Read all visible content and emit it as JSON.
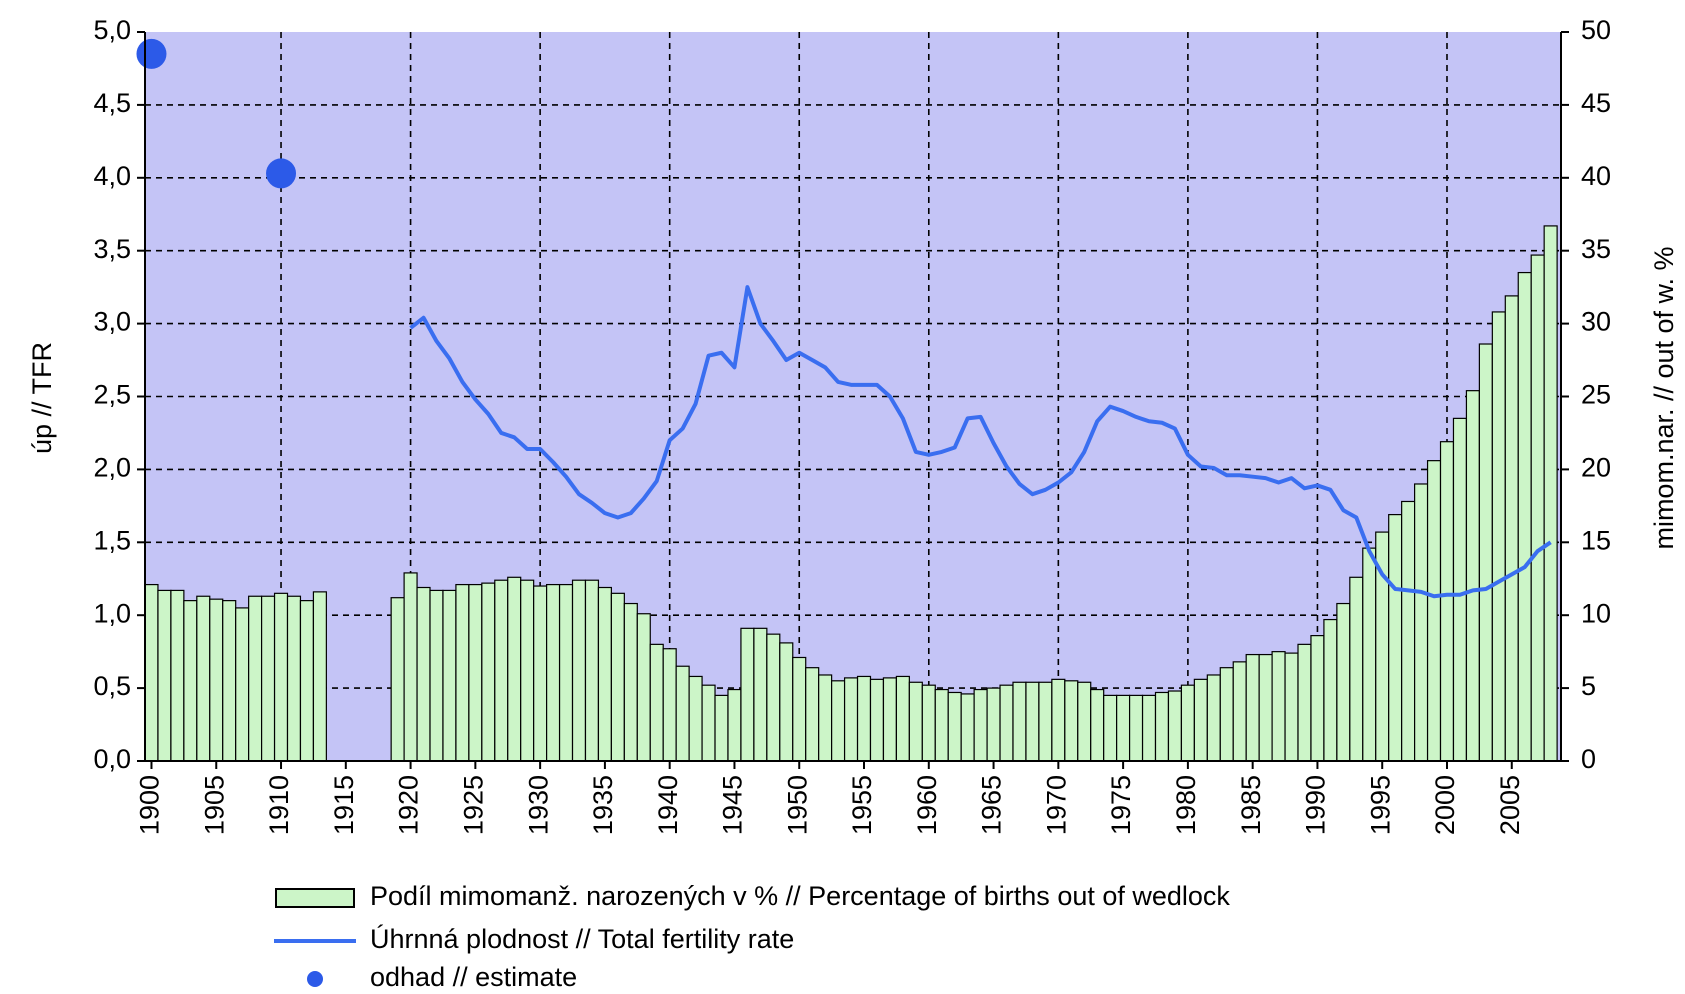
{
  "chart_data": {
    "type": "combo",
    "x": [
      1900,
      1901,
      1902,
      1903,
      1904,
      1905,
      1906,
      1907,
      1908,
      1909,
      1910,
      1911,
      1912,
      1913,
      1914,
      1915,
      1916,
      1917,
      1918,
      1919,
      1920,
      1921,
      1922,
      1923,
      1924,
      1925,
      1926,
      1927,
      1928,
      1929,
      1930,
      1931,
      1932,
      1933,
      1934,
      1935,
      1936,
      1937,
      1938,
      1939,
      1940,
      1941,
      1942,
      1943,
      1944,
      1945,
      1946,
      1947,
      1948,
      1949,
      1950,
      1951,
      1952,
      1953,
      1954,
      1955,
      1956,
      1957,
      1958,
      1959,
      1960,
      1961,
      1962,
      1963,
      1964,
      1965,
      1966,
      1967,
      1968,
      1969,
      1970,
      1971,
      1972,
      1973,
      1974,
      1975,
      1976,
      1977,
      1978,
      1979,
      1980,
      1981,
      1982,
      1983,
      1984,
      1985,
      1986,
      1987,
      1988,
      1989,
      1990,
      1991,
      1992,
      1993,
      1994,
      1995,
      1996,
      1997,
      1998,
      1999,
      2000,
      2001,
      2002,
      2003,
      2004,
      2005,
      2006,
      2007,
      2008
    ],
    "series": [
      {
        "name": "Podíl mimomanž. narozených v % // Percentage of births out of wedlock",
        "type": "bar",
        "axis": "y2",
        "color": "#ccf5c8",
        "values": [
          12.1,
          11.7,
          11.7,
          11.0,
          11.3,
          11.1,
          11.0,
          10.5,
          11.3,
          11.3,
          11.5,
          11.3,
          11.0,
          11.6,
          null,
          null,
          null,
          null,
          null,
          11.2,
          12.9,
          11.9,
          11.7,
          11.7,
          12.1,
          12.1,
          12.2,
          12.4,
          12.6,
          12.4,
          12.0,
          12.1,
          12.1,
          12.4,
          12.4,
          11.9,
          11.5,
          10.8,
          10.1,
          8.0,
          7.7,
          6.5,
          5.8,
          5.2,
          4.5,
          4.9,
          9.1,
          9.1,
          8.7,
          8.1,
          7.1,
          6.4,
          5.9,
          5.5,
          5.7,
          5.8,
          5.6,
          5.7,
          5.8,
          5.4,
          5.2,
          4.9,
          4.7,
          4.6,
          4.9,
          5.0,
          5.2,
          5.4,
          5.4,
          5.4,
          5.6,
          5.5,
          5.4,
          4.9,
          4.5,
          4.5,
          4.5,
          4.5,
          4.7,
          4.8,
          5.2,
          5.6,
          5.9,
          6.4,
          6.8,
          7.3,
          7.3,
          7.5,
          7.4,
          8.0,
          8.6,
          9.7,
          10.8,
          12.6,
          14.6,
          15.7,
          16.9,
          17.8,
          19.0,
          20.6,
          21.9,
          23.5,
          25.4,
          28.6,
          30.8,
          31.9,
          33.5,
          34.7,
          36.7
        ]
      },
      {
        "name": "Úhrnná plodnost // Total fertility rate",
        "type": "line",
        "color": "#3a6ef0",
        "values": [
          null,
          null,
          null,
          null,
          null,
          null,
          null,
          null,
          null,
          null,
          null,
          null,
          null,
          null,
          null,
          null,
          null,
          null,
          null,
          null,
          2.97,
          3.04,
          2.88,
          2.76,
          2.6,
          2.48,
          2.38,
          2.25,
          2.22,
          2.14,
          2.14,
          2.05,
          1.95,
          1.83,
          1.77,
          1.7,
          1.67,
          1.7,
          1.8,
          1.92,
          2.2,
          2.28,
          2.45,
          2.78,
          2.8,
          2.7,
          3.25,
          3.0,
          2.88,
          2.75,
          2.8,
          2.75,
          2.7,
          2.6,
          2.58,
          2.58,
          2.58,
          2.5,
          2.35,
          2.12,
          2.1,
          2.12,
          2.15,
          2.35,
          2.36,
          2.18,
          2.02,
          1.9,
          1.83,
          1.86,
          1.91,
          1.98,
          2.12,
          2.33,
          2.43,
          2.4,
          2.36,
          2.33,
          2.32,
          2.28,
          2.1,
          2.02,
          2.01,
          1.96,
          1.96,
          1.95,
          1.94,
          1.91,
          1.94,
          1.87,
          1.89,
          1.86,
          1.72,
          1.67,
          1.44,
          1.28,
          1.18,
          1.17,
          1.16,
          1.13,
          1.14,
          1.14,
          1.17,
          1.18,
          1.23,
          1.28,
          1.33,
          1.44,
          1.5
        ]
      },
      {
        "name": "odhad // estimate",
        "type": "scatter",
        "color": "#2c5ae8",
        "x": [
          1900,
          1910
        ],
        "values": [
          4.85,
          4.03
        ]
      }
    ],
    "ylabel": "úp // TFR",
    "y2label": "mimom.nar. // out of w. %",
    "xlim": [
      1899.5,
      2008.8
    ],
    "xticks": [
      1900,
      1905,
      1910,
      1915,
      1920,
      1925,
      1930,
      1935,
      1940,
      1945,
      1950,
      1955,
      1960,
      1965,
      1970,
      1975,
      1980,
      1985,
      1990,
      1995,
      2000,
      2005
    ],
    "ylim": [
      0,
      5
    ],
    "yticks": [
      {
        "value": 0,
        "label": "0,0"
      },
      {
        "value": 0.5,
        "label": "0,5"
      },
      {
        "value": 1,
        "label": "1,0"
      },
      {
        "value": 1.5,
        "label": "1,5"
      },
      {
        "value": 2,
        "label": "2,0"
      },
      {
        "value": 2.5,
        "label": "2,5"
      },
      {
        "value": 3,
        "label": "3,0"
      },
      {
        "value": 3.5,
        "label": "3,5"
      },
      {
        "value": 4,
        "label": "4,0"
      },
      {
        "value": 4.5,
        "label": "4,5"
      },
      {
        "value": 5,
        "label": "5,0"
      }
    ],
    "y2lim": [
      0,
      50
    ],
    "y2ticks": [
      0,
      5,
      10,
      15,
      20,
      25,
      30,
      35,
      40,
      45,
      50
    ],
    "grid": true,
    "background": "#c4c4f6"
  }
}
